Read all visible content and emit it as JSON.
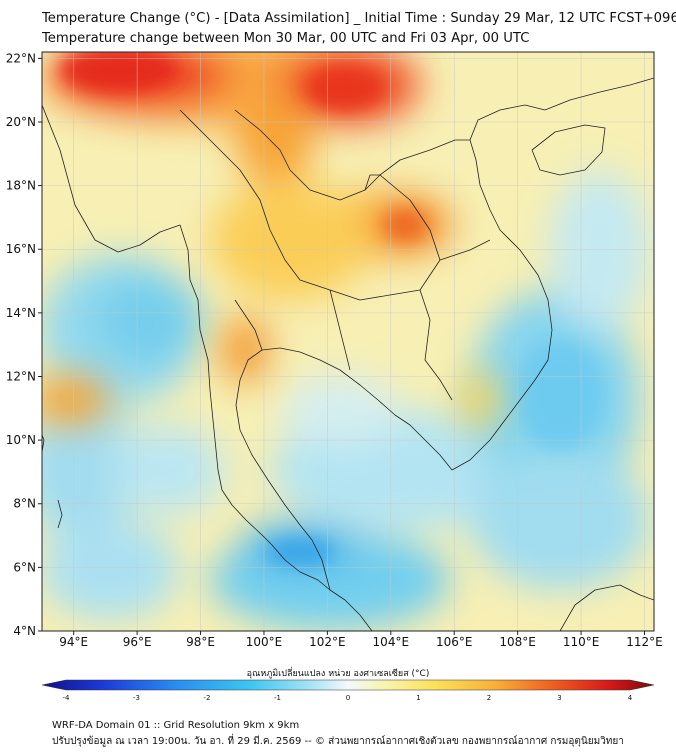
{
  "header": {
    "title_line1": "Temperature Change (°C) - [Data Assimilation] _ Initial Time : Sunday 29 Mar, 12 UTC FCST+096",
    "title_line2": "Temperature change between Mon 30 Mar, 00 UTC and Fri 03 Apr, 00 UTC"
  },
  "map": {
    "lat_labels": [
      "22°N",
      "20°N",
      "18°N",
      "16°N",
      "14°N",
      "12°N",
      "10°N",
      "8°N",
      "6°N",
      "4°N"
    ],
    "lon_labels": [
      "94°E",
      "96°E",
      "98°E",
      "100°E",
      "102°E",
      "104°E",
      "106°E",
      "108°E",
      "110°E",
      "112°E"
    ],
    "lat_values": [
      22,
      20,
      18,
      16,
      14,
      12,
      10,
      8,
      6,
      4
    ],
    "lon_values": [
      94,
      96,
      98,
      100,
      102,
      104,
      106,
      108,
      110,
      112
    ],
    "extent": {
      "lon_min": 93,
      "lon_max": 112.3,
      "lat_min": 4,
      "lat_max": 22.2
    }
  },
  "colorbar": {
    "title": "อุณหภูมิเปลี่ยนแปลง หน่วย องศาเซลเซียส (°C)",
    "tick_labels": [
      "-4",
      "-3",
      "-2",
      "-1",
      "0",
      "1",
      "2",
      "3",
      "4"
    ],
    "min": -4,
    "max": 4
  },
  "footer": {
    "line1": "WRF-DA Domain 01 :: Grid Resolution 9km x 9km",
    "line2": "ปรับปรุงข้อมูล ณ เวลา 19:00น. วัน อา. ที่ 29 มี.ค. 2569 -- © ส่วนพยากรณ์อากาศเชิงตัวเลข กองพยากรณ์อากาศ กรมอุตุนิยมวิทยา"
  }
}
